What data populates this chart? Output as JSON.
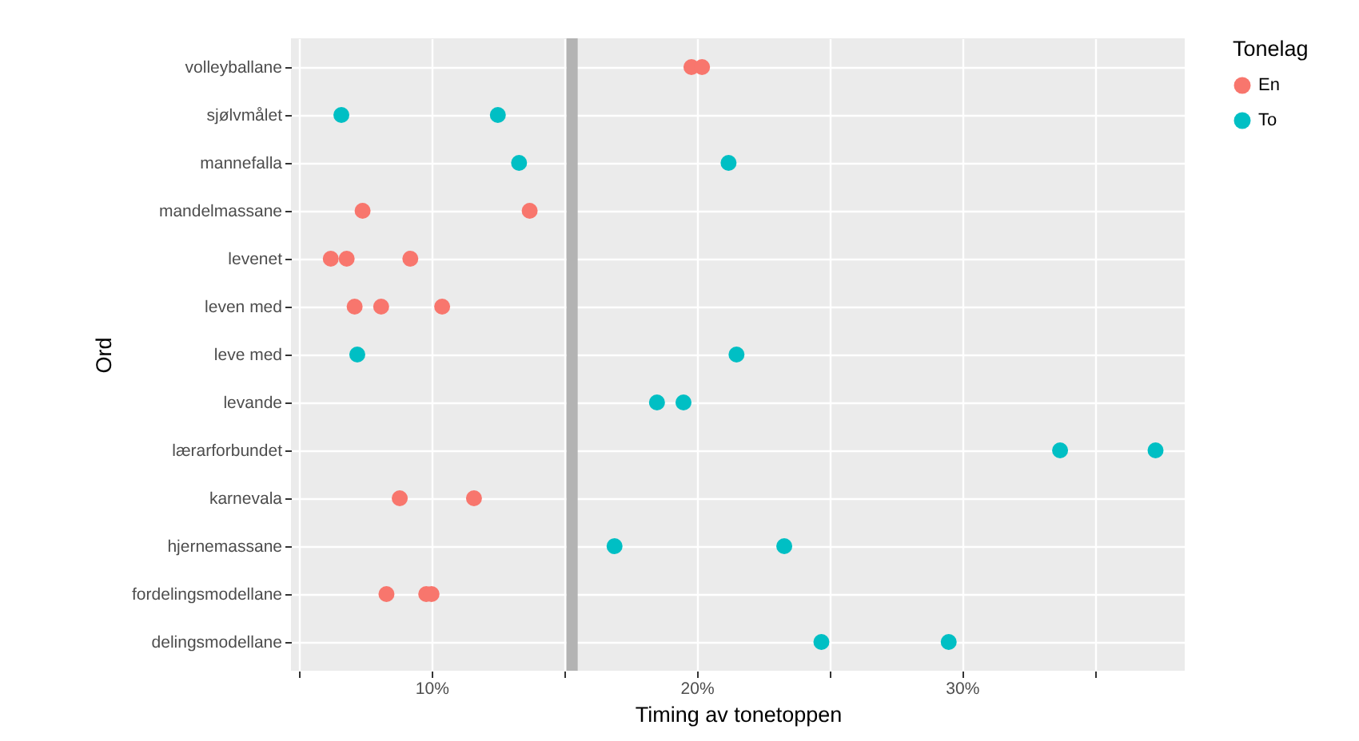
{
  "chart_data": {
    "type": "scatter",
    "orientation": "horizontal",
    "xlabel": "Timing av tonetoppen",
    "ylabel": "Ord",
    "legend_title": "Tonelag",
    "legend": "right",
    "grid": true,
    "marker": "circle",
    "categories": [
      "volleyballane",
      "sjølvmålet",
      "mannefalla",
      "mandelmassane",
      "levenet",
      "leven med",
      "leve med",
      "levande",
      "lærarforbundet",
      "karnevala",
      "hjernemassane",
      "fordelingsmodellane",
      "delingsmodellane"
    ],
    "xlim": [
      4.7,
      38.4
    ],
    "xticks": [
      {
        "value": 5,
        "label": null
      },
      {
        "value": 10,
        "label": "10%"
      },
      {
        "value": 15,
        "label": null
      },
      {
        "value": 20,
        "label": "20%"
      },
      {
        "value": 25,
        "label": null
      },
      {
        "value": 30,
        "label": "30%"
      },
      {
        "value": 35,
        "label": null
      }
    ],
    "series": [
      {
        "name": "En",
        "color": "#f8766d",
        "values": [
          19.8,
          null,
          null,
          7.4,
          6.2,
          7.1,
          null,
          null,
          null,
          8.8,
          null,
          8.3,
          null
        ]
      },
      {
        "color": "#f8766d",
        "values": [
          20.2,
          null,
          null,
          13.7,
          6.8,
          8.1,
          null,
          null,
          null,
          11.6,
          null,
          9.8,
          null
        ]
      },
      {
        "color": "#f8766d",
        "values": [
          null,
          null,
          null,
          null,
          9.2,
          10.4,
          null,
          null,
          null,
          null,
          null,
          10.0,
          null
        ]
      },
      {
        "name": "To",
        "color": "#00bfc4",
        "values": [
          null,
          6.6,
          13.3,
          null,
          null,
          null,
          7.2,
          18.5,
          33.7,
          null,
          16.9,
          null,
          24.7
        ]
      },
      {
        "color": "#00bfc4",
        "values": [
          null,
          12.5,
          21.2,
          null,
          null,
          null,
          21.5,
          19.5,
          37.3,
          null,
          23.3,
          null,
          29.5
        ]
      }
    ],
    "ref_lines": [
      {
        "axis": "x",
        "value": 15.3,
        "color": "#b3b3b3"
      }
    ]
  }
}
